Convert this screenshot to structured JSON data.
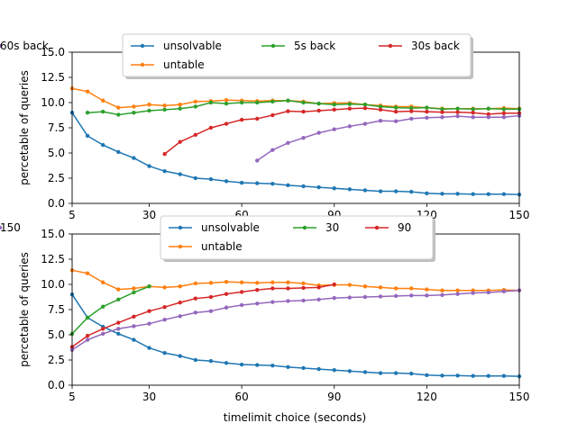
{
  "figure": {
    "xlabel": "timelimit choice (seconds)"
  },
  "chart_data": [
    {
      "type": "line",
      "ylabel": "percetable of queries",
      "xlim": [
        5,
        150
      ],
      "ylim": [
        0,
        15
      ],
      "xticks": [
        5,
        30,
        60,
        90,
        120,
        150
      ],
      "yticks": [
        0.0,
        2.5,
        5.0,
        7.5,
        10.0,
        12.5,
        15.0
      ],
      "legend_position": "top-center",
      "series": [
        {
          "name": "unsolvable",
          "color": "#1f77b4",
          "x": [
            5,
            10,
            15,
            20,
            25,
            30,
            35,
            40,
            45,
            50,
            55,
            60,
            65,
            70,
            75,
            80,
            85,
            90,
            95,
            100,
            105,
            110,
            115,
            120,
            125,
            130,
            135,
            140,
            145,
            150
          ],
          "y": [
            9.0,
            6.7,
            5.8,
            5.1,
            4.5,
            3.7,
            3.2,
            2.9,
            2.5,
            2.4,
            2.2,
            2.05,
            2.0,
            1.95,
            1.8,
            1.7,
            1.6,
            1.5,
            1.4,
            1.3,
            1.2,
            1.2,
            1.15,
            1.0,
            0.95,
            0.95,
            0.92,
            0.92,
            0.92,
            0.88
          ]
        },
        {
          "name": "untable",
          "color": "#ff7f0e",
          "x": [
            5,
            10,
            15,
            20,
            25,
            30,
            35,
            40,
            45,
            50,
            55,
            60,
            65,
            70,
            75,
            80,
            85,
            90,
            95,
            100,
            105,
            110,
            115,
            120,
            125,
            130,
            135,
            140,
            145,
            150
          ],
          "y": [
            11.4,
            11.1,
            10.2,
            9.5,
            9.6,
            9.8,
            9.7,
            9.8,
            10.1,
            10.15,
            10.25,
            10.2,
            10.15,
            10.2,
            10.2,
            10.1,
            9.9,
            9.95,
            9.95,
            9.8,
            9.7,
            9.6,
            9.6,
            9.5,
            9.4,
            9.4,
            9.4,
            9.4,
            9.45,
            9.4
          ]
        },
        {
          "name": "5s back",
          "color": "#2ca02c",
          "x": [
            10,
            15,
            20,
            25,
            30,
            35,
            40,
            45,
            50,
            55,
            60,
            65,
            70,
            75,
            80,
            85,
            90,
            95,
            100,
            105,
            110,
            115,
            120,
            125,
            130,
            135,
            140,
            145,
            150
          ],
          "y": [
            9.0,
            9.1,
            8.8,
            9.0,
            9.2,
            9.3,
            9.4,
            9.6,
            10.0,
            9.9,
            10.0,
            10.0,
            10.1,
            10.2,
            10.0,
            9.9,
            9.8,
            9.85,
            9.8,
            9.6,
            9.5,
            9.45,
            9.5,
            9.35,
            9.4,
            9.35,
            9.4,
            9.35,
            9.35
          ]
        },
        {
          "name": "30s back",
          "color": "#d62728",
          "x": [
            35,
            40,
            45,
            50,
            55,
            60,
            65,
            70,
            75,
            80,
            85,
            90,
            95,
            100,
            105,
            110,
            115,
            120,
            125,
            130,
            135,
            140,
            145,
            150
          ],
          "y": [
            4.9,
            6.1,
            6.8,
            7.5,
            7.9,
            8.3,
            8.4,
            8.75,
            9.15,
            9.1,
            9.2,
            9.3,
            9.4,
            9.45,
            9.3,
            9.1,
            9.15,
            9.1,
            9.05,
            9.05,
            9.0,
            8.85,
            8.95,
            8.95
          ]
        },
        {
          "name": "60s back",
          "color": "#9467bd",
          "x": [
            65,
            70,
            75,
            80,
            85,
            90,
            95,
            100,
            105,
            110,
            115,
            120,
            125,
            130,
            135,
            140,
            145,
            150
          ],
          "y": [
            4.25,
            5.3,
            6.0,
            6.5,
            7.0,
            7.35,
            7.65,
            7.9,
            8.2,
            8.15,
            8.4,
            8.5,
            8.55,
            8.65,
            8.55,
            8.55,
            8.55,
            8.7
          ]
        }
      ]
    },
    {
      "type": "line",
      "ylabel": "percetable of queries",
      "xlabel": "timelimit choice (seconds)",
      "xlim": [
        5,
        150
      ],
      "ylim": [
        0,
        15
      ],
      "xticks": [
        5,
        30,
        60,
        90,
        120,
        150
      ],
      "yticks": [
        0.0,
        2.5,
        5.0,
        7.5,
        10.0,
        12.5,
        15.0
      ],
      "legend_position": "top-center",
      "series": [
        {
          "name": "unsolvable",
          "color": "#1f77b4",
          "x": [
            5,
            10,
            15,
            20,
            25,
            30,
            35,
            40,
            45,
            50,
            55,
            60,
            65,
            70,
            75,
            80,
            85,
            90,
            95,
            100,
            105,
            110,
            115,
            120,
            125,
            130,
            135,
            140,
            145,
            150
          ],
          "y": [
            9.0,
            6.7,
            5.8,
            5.1,
            4.5,
            3.7,
            3.2,
            2.9,
            2.5,
            2.4,
            2.2,
            2.05,
            2.0,
            1.95,
            1.8,
            1.7,
            1.6,
            1.5,
            1.4,
            1.3,
            1.2,
            1.2,
            1.15,
            1.0,
            0.95,
            0.95,
            0.92,
            0.92,
            0.92,
            0.88
          ]
        },
        {
          "name": "untable",
          "color": "#ff7f0e",
          "x": [
            5,
            10,
            15,
            20,
            25,
            30,
            35,
            40,
            45,
            50,
            55,
            60,
            65,
            70,
            75,
            80,
            85,
            90,
            95,
            100,
            105,
            110,
            115,
            120,
            125,
            130,
            135,
            140,
            145,
            150
          ],
          "y": [
            11.4,
            11.1,
            10.2,
            9.5,
            9.6,
            9.8,
            9.7,
            9.8,
            10.1,
            10.15,
            10.25,
            10.2,
            10.15,
            10.2,
            10.2,
            10.1,
            9.9,
            9.95,
            9.95,
            9.8,
            9.7,
            9.6,
            9.6,
            9.5,
            9.4,
            9.4,
            9.4,
            9.4,
            9.45,
            9.4
          ]
        },
        {
          "name": "30",
          "color": "#2ca02c",
          "x": [
            5,
            10,
            15,
            20,
            25,
            30
          ],
          "y": [
            5.1,
            6.7,
            7.8,
            8.5,
            9.2,
            9.8
          ]
        },
        {
          "name": "90",
          "color": "#d62728",
          "x": [
            5,
            10,
            15,
            20,
            25,
            30,
            35,
            40,
            45,
            50,
            55,
            60,
            65,
            70,
            75,
            80,
            85,
            90
          ],
          "y": [
            3.8,
            4.9,
            5.6,
            6.2,
            6.8,
            7.35,
            7.75,
            8.2,
            8.6,
            8.75,
            9.05,
            9.25,
            9.45,
            9.6,
            9.6,
            9.65,
            9.7,
            10.0
          ]
        },
        {
          "name": "150",
          "color": "#9467bd",
          "x": [
            5,
            10,
            15,
            20,
            25,
            30,
            35,
            40,
            45,
            50,
            55,
            60,
            65,
            70,
            75,
            80,
            85,
            90,
            95,
            100,
            105,
            110,
            115,
            120,
            125,
            130,
            135,
            140,
            145,
            150
          ],
          "y": [
            3.5,
            4.5,
            5.1,
            5.6,
            5.85,
            6.1,
            6.5,
            6.85,
            7.2,
            7.35,
            7.7,
            7.95,
            8.1,
            8.25,
            8.35,
            8.4,
            8.5,
            8.65,
            8.7,
            8.75,
            8.8,
            8.85,
            8.9,
            8.9,
            8.95,
            9.05,
            9.15,
            9.2,
            9.3,
            9.4
          ]
        }
      ]
    }
  ]
}
